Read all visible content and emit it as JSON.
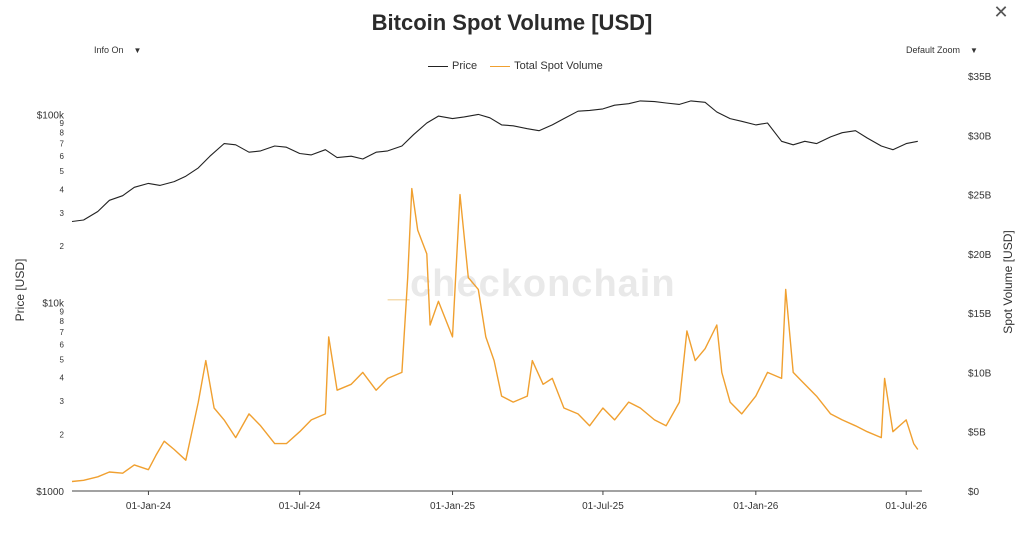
{
  "title": "Bitcoin Spot Volume [USD]",
  "controls": {
    "info_label": "Info On",
    "zoom_label": "Default Zoom"
  },
  "icons": {
    "close": "close-icon",
    "caret": "caret-down-icon"
  },
  "watermark": {
    "dash": "_",
    "text": "checkonchain"
  },
  "colors": {
    "price": "#222222",
    "volume": "#f0a030",
    "axis": "#333333"
  },
  "chart_data": {
    "type": "line",
    "title": "Bitcoin Spot Volume [USD]",
    "ylabel_left": "Price [USD]",
    "ylabel_right": "Spot Volume [USD]",
    "y_left_scale": "log",
    "y_left_range": [
      1000,
      160000
    ],
    "y_right_range": [
      0,
      35
    ],
    "y_left_major_ticks": [
      {
        "value": 1000,
        "label": "$1000"
      },
      {
        "value": 10000,
        "label": "$10k"
      },
      {
        "value": 100000,
        "label": "$100k"
      }
    ],
    "y_left_minor_ticks": [
      2,
      3,
      4,
      5,
      6,
      7,
      8,
      9
    ],
    "y_right_ticks": [
      {
        "value": 0,
        "label": "$0"
      },
      {
        "value": 5,
        "label": "$5B"
      },
      {
        "value": 10,
        "label": "$10B"
      },
      {
        "value": 15,
        "label": "$15B"
      },
      {
        "value": 20,
        "label": "$20B"
      },
      {
        "value": 25,
        "label": "$25B"
      },
      {
        "value": 30,
        "label": "$30B"
      },
      {
        "value": 35,
        "label": "$35B"
      }
    ],
    "x_range": [
      "2023-10-01",
      "2026-07-20"
    ],
    "x_ticks": [
      {
        "date": "2024-01-01",
        "label": "01-Jan-24"
      },
      {
        "date": "2024-07-01",
        "label": "01-Jul-24"
      },
      {
        "date": "2025-01-01",
        "label": "01-Jan-25"
      },
      {
        "date": "2025-07-01",
        "label": "01-Jul-25"
      },
      {
        "date": "2026-01-01",
        "label": "01-Jan-26"
      },
      {
        "date": "2026-07-01",
        "label": "01-Jul-26"
      }
    ],
    "legend": "top-center",
    "grid": false,
    "series": [
      {
        "name": "Price",
        "axis": "left",
        "x": [
          "2023-10-01",
          "2023-10-15",
          "2023-11-01",
          "2023-11-15",
          "2023-12-01",
          "2023-12-15",
          "2024-01-01",
          "2024-01-15",
          "2024-02-01",
          "2024-02-15",
          "2024-03-01",
          "2024-03-15",
          "2024-04-01",
          "2024-04-15",
          "2024-05-01",
          "2024-05-15",
          "2024-06-01",
          "2024-06-15",
          "2024-07-01",
          "2024-07-15",
          "2024-08-01",
          "2024-08-15",
          "2024-09-01",
          "2024-09-15",
          "2024-10-01",
          "2024-10-15",
          "2024-11-01",
          "2024-11-15",
          "2024-12-01",
          "2024-12-15",
          "2025-01-01",
          "2025-01-15",
          "2025-02-01",
          "2025-02-15",
          "2025-03-01",
          "2025-03-15",
          "2025-04-01",
          "2025-04-15",
          "2025-05-01",
          "2025-05-15",
          "2025-06-01",
          "2025-06-15",
          "2025-07-01",
          "2025-07-15",
          "2025-08-01",
          "2025-08-15",
          "2025-09-01",
          "2025-09-15",
          "2025-10-01",
          "2025-10-15",
          "2025-11-01",
          "2025-11-15",
          "2025-12-01",
          "2025-12-15",
          "2026-01-01",
          "2026-01-15",
          "2026-02-01",
          "2026-02-15",
          "2026-03-01",
          "2026-03-15",
          "2026-04-01",
          "2026-04-15",
          "2026-05-01",
          "2026-05-15",
          "2026-06-01",
          "2026-06-15",
          "2026-07-01",
          "2026-07-15"
        ],
        "values": [
          27000,
          27500,
          30500,
          35000,
          37000,
          41000,
          43000,
          42000,
          44000,
          47000,
          52000,
          60000,
          70000,
          69000,
          63000,
          64000,
          68000,
          67000,
          62000,
          61000,
          65000,
          59000,
          60000,
          58000,
          63000,
          64000,
          68000,
          78000,
          90000,
          98000,
          95000,
          97000,
          100000,
          96000,
          88000,
          87000,
          84000,
          82000,
          88000,
          95000,
          104000,
          105000,
          107000,
          112000,
          114000,
          118000,
          117000,
          115000,
          113000,
          118000,
          116000,
          103000,
          95000,
          92000,
          88000,
          90000,
          72000,
          69000,
          72000,
          70000,
          76000,
          80000,
          82000,
          75000,
          68000,
          65000,
          70000,
          72000
        ]
      },
      {
        "name": "Total Spot Volume",
        "axis": "right",
        "x": [
          "2023-10-01",
          "2023-10-15",
          "2023-11-01",
          "2023-11-15",
          "2023-12-01",
          "2023-12-15",
          "2024-01-01",
          "2024-01-10",
          "2024-01-20",
          "2024-02-01",
          "2024-02-15",
          "2024-03-01",
          "2024-03-10",
          "2024-03-20",
          "2024-04-01",
          "2024-04-15",
          "2024-05-01",
          "2024-05-15",
          "2024-06-01",
          "2024-06-15",
          "2024-07-01",
          "2024-07-15",
          "2024-08-01",
          "2024-08-05",
          "2024-08-15",
          "2024-09-01",
          "2024-09-15",
          "2024-10-01",
          "2024-10-15",
          "2024-11-01",
          "2024-11-08",
          "2024-11-13",
          "2024-11-20",
          "2024-12-01",
          "2024-12-05",
          "2024-12-15",
          "2025-01-01",
          "2025-01-10",
          "2025-01-20",
          "2025-02-01",
          "2025-02-10",
          "2025-02-20",
          "2025-03-01",
          "2025-03-15",
          "2025-04-01",
          "2025-04-07",
          "2025-04-20",
          "2025-05-01",
          "2025-05-15",
          "2025-06-01",
          "2025-06-15",
          "2025-07-01",
          "2025-07-15",
          "2025-08-01",
          "2025-08-15",
          "2025-09-01",
          "2025-09-15",
          "2025-10-01",
          "2025-10-10",
          "2025-10-20",
          "2025-11-01",
          "2025-11-15",
          "2025-11-21",
          "2025-12-01",
          "2025-12-15",
          "2026-01-01",
          "2026-01-15",
          "2026-02-01",
          "2026-02-06",
          "2026-02-15",
          "2026-03-01",
          "2026-03-15",
          "2026-04-01",
          "2026-04-15",
          "2026-05-01",
          "2026-05-15",
          "2026-06-01",
          "2026-06-05",
          "2026-06-15",
          "2026-07-01",
          "2026-07-10",
          "2026-07-15"
        ],
        "values": [
          0.8,
          0.9,
          1.2,
          1.6,
          1.5,
          2.2,
          1.8,
          3.0,
          4.2,
          3.5,
          2.6,
          7.5,
          11.0,
          7.0,
          6.0,
          4.5,
          6.5,
          5.5,
          4.0,
          4.0,
          5.0,
          6.0,
          6.5,
          13.0,
          8.5,
          9.0,
          10.0,
          8.5,
          9.5,
          10.0,
          18.0,
          25.5,
          22.0,
          20.0,
          14.0,
          16.0,
          13.0,
          25.0,
          18.0,
          17.0,
          13.0,
          11.0,
          8.0,
          7.5,
          8.0,
          11.0,
          9.0,
          9.5,
          7.0,
          6.5,
          5.5,
          7.0,
          6.0,
          7.5,
          7.0,
          6.0,
          5.5,
          7.5,
          13.5,
          11.0,
          12.0,
          14.0,
          10.0,
          7.5,
          6.5,
          8.0,
          10.0,
          9.5,
          17.0,
          10.0,
          9.0,
          8.0,
          6.5,
          6.0,
          5.5,
          5.0,
          4.5,
          9.5,
          5.0,
          6.0,
          4.0,
          3.5
        ]
      }
    ]
  }
}
